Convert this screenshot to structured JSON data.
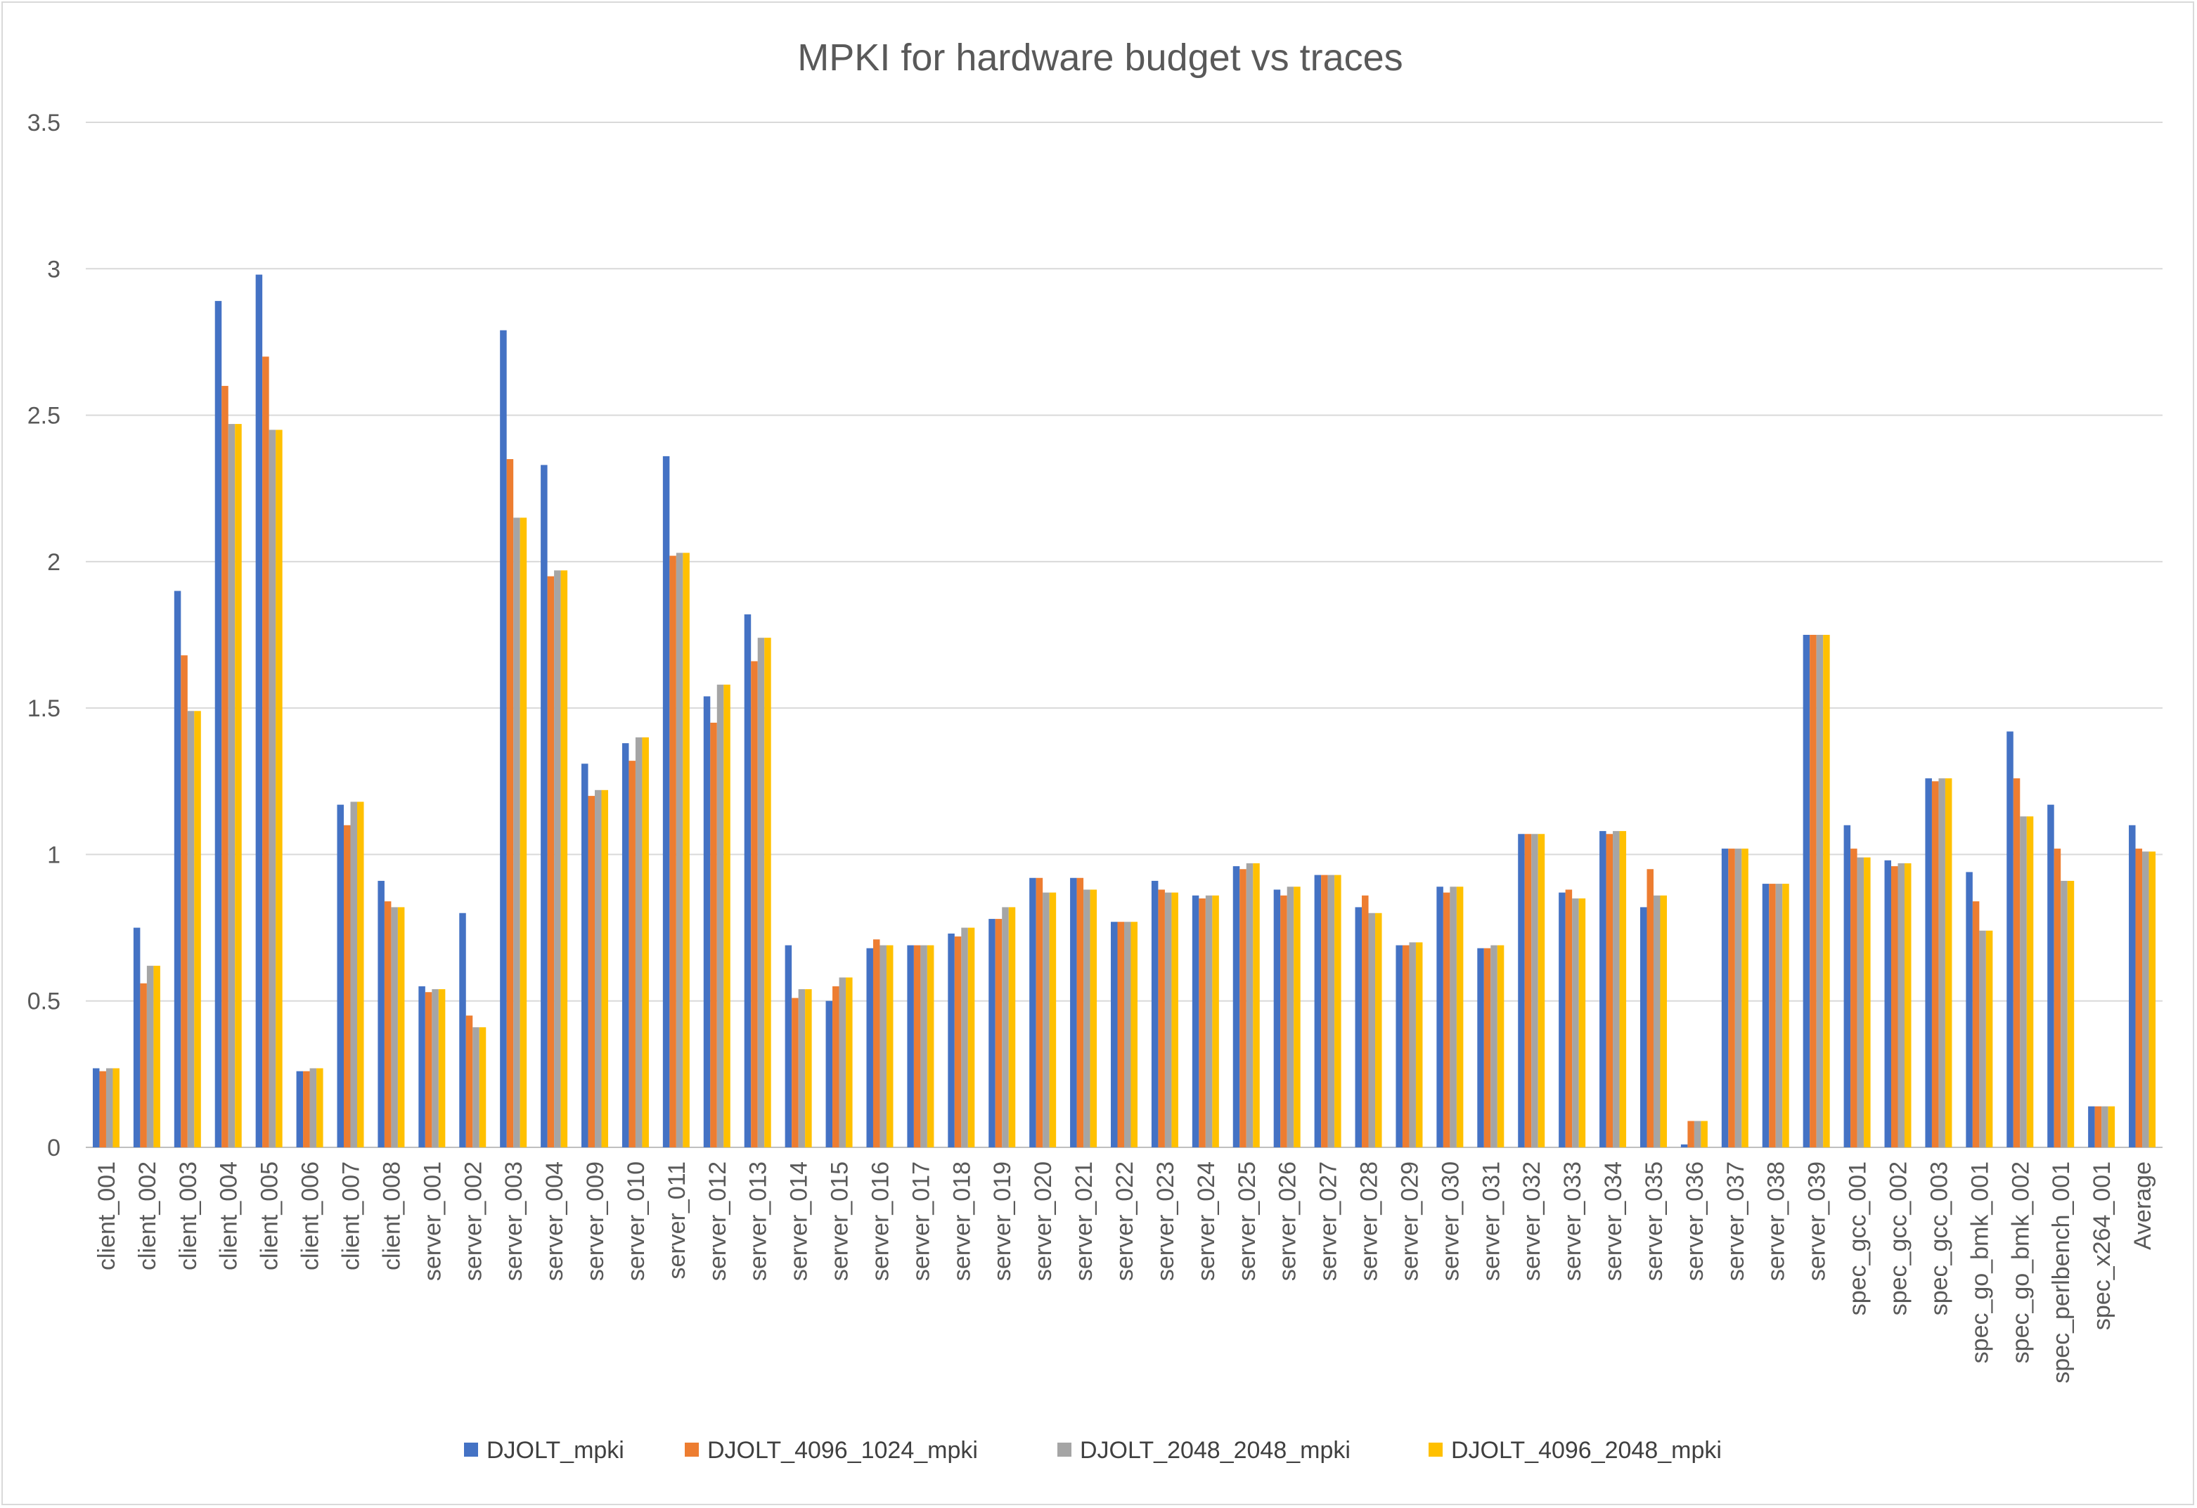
{
  "chart_data": {
    "type": "bar",
    "title": "MPKI for hardware budget vs traces",
    "xlabel": "",
    "ylabel": "",
    "ylim": [
      0,
      3.5
    ],
    "yticks": [
      "0",
      "0.5",
      "1",
      "1.5",
      "2",
      "2.5",
      "3",
      "3.5"
    ],
    "grid": true,
    "legend_position": "bottom",
    "categories": [
      "client_001",
      "client_002",
      "client_003",
      "client_004",
      "client_005",
      "client_006",
      "client_007",
      "client_008",
      "server_001",
      "server_002",
      "server_003",
      "server_004",
      "server_009",
      "server_010",
      "server_011",
      "server_012",
      "server_013",
      "server_014",
      "server_015",
      "server_016",
      "server_017",
      "server_018",
      "server_019",
      "server_020",
      "server_021",
      "server_022",
      "server_023",
      "server_024",
      "server_025",
      "server_026",
      "server_027",
      "server_028",
      "server_029",
      "server_030",
      "server_031",
      "server_032",
      "server_033",
      "server_034",
      "server_035",
      "server_036",
      "server_037",
      "server_038",
      "server_039",
      "spec_gcc_001",
      "spec_gcc_002",
      "spec_gcc_003",
      "spec_go_bmk_001",
      "spec_go_bmk_002",
      "spec_perlbench_001",
      "spec_x264_001",
      "Average"
    ],
    "series": [
      {
        "name": "DJOLT_mpki",
        "color": "#4472C4",
        "values": [
          0.27,
          0.75,
          1.9,
          2.89,
          2.98,
          0.26,
          1.17,
          0.91,
          0.55,
          0.8,
          2.79,
          2.33,
          1.31,
          1.38,
          2.36,
          1.54,
          1.82,
          0.69,
          0.5,
          0.68,
          0.69,
          0.73,
          0.78,
          0.92,
          0.92,
          0.77,
          0.91,
          0.86,
          0.96,
          0.88,
          0.93,
          0.82,
          0.69,
          0.89,
          0.68,
          1.07,
          0.87,
          1.08,
          0.82,
          0.01,
          1.02,
          0.9,
          1.75,
          1.1,
          0.98,
          1.26,
          0.94,
          1.42,
          1.17,
          0.14,
          1.1
        ]
      },
      {
        "name": "DJOLT_4096_1024_mpki",
        "color": "#ED7D31",
        "values": [
          0.26,
          0.56,
          1.68,
          2.6,
          2.7,
          0.26,
          1.1,
          0.84,
          0.53,
          0.45,
          2.35,
          1.95,
          1.2,
          1.32,
          2.02,
          1.45,
          1.66,
          0.51,
          0.55,
          0.71,
          0.69,
          0.72,
          0.78,
          0.92,
          0.92,
          0.77,
          0.88,
          0.85,
          0.95,
          0.86,
          0.93,
          0.86,
          0.69,
          0.87,
          0.68,
          1.07,
          0.88,
          1.07,
          0.95,
          0.09,
          1.02,
          0.9,
          1.75,
          1.02,
          0.96,
          1.25,
          0.84,
          1.26,
          1.02,
          0.14,
          1.02
        ]
      },
      {
        "name": "DJOLT_2048_2048_mpki",
        "color": "#A5A5A5",
        "values": [
          0.27,
          0.62,
          1.49,
          2.47,
          2.45,
          0.27,
          1.18,
          0.82,
          0.54,
          0.41,
          2.15,
          1.97,
          1.22,
          1.4,
          2.03,
          1.58,
          1.74,
          0.54,
          0.58,
          0.69,
          0.69,
          0.75,
          0.82,
          0.87,
          0.88,
          0.77,
          0.87,
          0.86,
          0.97,
          0.89,
          0.93,
          0.8,
          0.7,
          0.89,
          0.69,
          1.07,
          0.85,
          1.08,
          0.86,
          0.09,
          1.02,
          0.9,
          1.75,
          0.99,
          0.97,
          1.26,
          0.74,
          1.13,
          0.91,
          0.14,
          1.01
        ]
      },
      {
        "name": "DJOLT_4096_2048_mpki",
        "color": "#FFC000",
        "values": [
          0.27,
          0.62,
          1.49,
          2.47,
          2.45,
          0.27,
          1.18,
          0.82,
          0.54,
          0.41,
          2.15,
          1.97,
          1.22,
          1.4,
          2.03,
          1.58,
          1.74,
          0.54,
          0.58,
          0.69,
          0.69,
          0.75,
          0.82,
          0.87,
          0.88,
          0.77,
          0.87,
          0.86,
          0.97,
          0.89,
          0.93,
          0.8,
          0.7,
          0.89,
          0.69,
          1.07,
          0.85,
          1.08,
          0.86,
          0.09,
          1.02,
          0.9,
          1.75,
          0.99,
          0.97,
          1.26,
          0.74,
          1.13,
          0.91,
          0.14,
          1.01
        ]
      }
    ]
  }
}
